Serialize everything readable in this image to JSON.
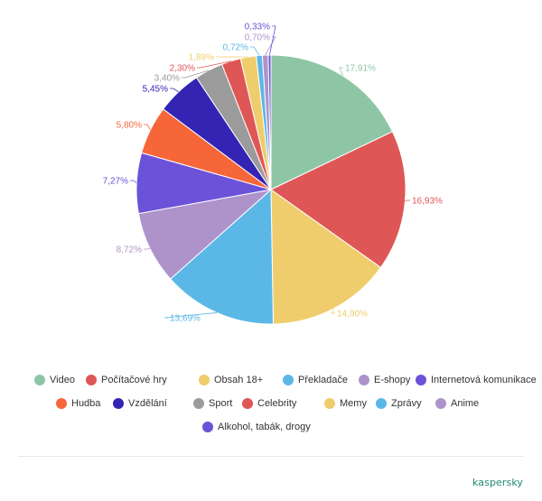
{
  "chart_data": {
    "type": "pie",
    "slices": [
      {
        "label": "Video",
        "value": 17.91,
        "value_label": "17,91%",
        "color": "#8ec6a5"
      },
      {
        "label": "Počítačové hry",
        "value": 16.93,
        "value_label": "16,93%",
        "color": "#df5656"
      },
      {
        "label": "Obsah 18+",
        "value": 14.9,
        "value_label": "14,90%",
        "color": "#f0cd6c"
      },
      {
        "label": "Překladače",
        "value": 13.69,
        "value_label": "13,69%",
        "color": "#5bb8e6"
      },
      {
        "label": "E-shopy",
        "value": 8.72,
        "value_label": "8,72%",
        "color": "#ae93cb"
      },
      {
        "label": "Internetová komunikace",
        "value": 7.27,
        "value_label": "7,27%",
        "color": "#6b52d8"
      },
      {
        "label": "Hudba",
        "value": 5.8,
        "value_label": "5,80%",
        "color": "#f76639"
      },
      {
        "label": "Vzdělání",
        "value": 5.45,
        "value_label": "5,45%",
        "color": "#3324b4"
      },
      {
        "label": "Sport",
        "value": 3.4,
        "value_label": "3,40%",
        "color": "#9b9b9b"
      },
      {
        "label": "Celebrity",
        "value": 2.3,
        "value_label": "2,30%",
        "color": "#df5656"
      },
      {
        "label": "Memy",
        "value": 1.89,
        "value_label": "1,89%",
        "color": "#f0cd6c"
      },
      {
        "label": "Zprávy",
        "value": 0.72,
        "value_label": "0,72%",
        "color": "#5bb8e6"
      },
      {
        "label": "Anime",
        "value": 0.7,
        "value_label": "0,70%",
        "color": "#ae93cb"
      },
      {
        "label": "Alkohol, tabák, drogy",
        "value": 0.33,
        "value_label": "0,33%",
        "color": "#6b52d8"
      }
    ],
    "legend_placement": "bottom"
  },
  "brand": {
    "name": "kaspersky"
  }
}
